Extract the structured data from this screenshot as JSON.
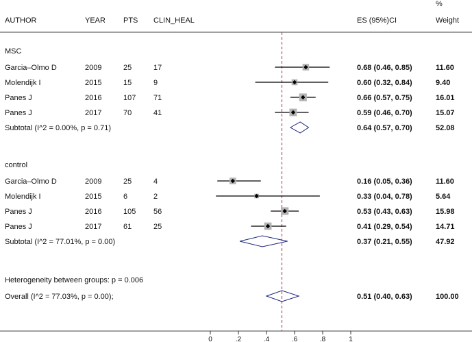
{
  "chart_data": {
    "type": "forest",
    "header": {
      "author": "AUTHOR",
      "year": "YEAR",
      "pts": "PTS",
      "clin_heal": "CLIN_HEAL",
      "es": "ES (95%)CI",
      "weight_top": "%",
      "weight": "Weight"
    },
    "groups": [
      {
        "name": "MSC",
        "studies": [
          {
            "author": "Garcia–Olmo D",
            "year": "2009",
            "pts": "25",
            "clin_heal": "17",
            "es": 0.68,
            "lo": 0.46,
            "hi": 0.85,
            "es_text": "0.68 (0.46, 0.85)",
            "weight": 11.6,
            "weight_text": "11.60"
          },
          {
            "author": "Molendijk I",
            "year": "2015",
            "pts": "15",
            "clin_heal": "9",
            "es": 0.6,
            "lo": 0.32,
            "hi": 0.84,
            "es_text": "0.60 (0.32, 0.84)",
            "weight": 9.4,
            "weight_text": "9.40"
          },
          {
            "author": "Panes J",
            "year": "2016",
            "pts": "107",
            "clin_heal": "71",
            "es": 0.66,
            "lo": 0.57,
            "hi": 0.75,
            "es_text": "0.66 (0.57, 0.75)",
            "weight": 16.01,
            "weight_text": "16.01"
          },
          {
            "author": "Panes J",
            "year": "2017",
            "pts": "70",
            "clin_heal": "41",
            "es": 0.59,
            "lo": 0.46,
            "hi": 0.7,
            "es_text": "0.59 (0.46, 0.70)",
            "weight": 15.07,
            "weight_text": "15.07"
          }
        ],
        "subtotal": {
          "label": "Subtotal  (I^2 = 0.00%, p = 0.71)",
          "es": 0.64,
          "lo": 0.57,
          "hi": 0.7,
          "es_text": "0.64 (0.57, 0.70)",
          "weight_text": "52.08"
        }
      },
      {
        "name": "control",
        "studies": [
          {
            "author": "Garcia–Olmo D",
            "year": "2009",
            "pts": "25",
            "clin_heal": "4",
            "es": 0.16,
            "lo": 0.05,
            "hi": 0.36,
            "es_text": "0.16 (0.05, 0.36)",
            "weight": 11.6,
            "weight_text": "11.60"
          },
          {
            "author": "Molendijk I",
            "year": "2015",
            "pts": "6",
            "clin_heal": "2",
            "es": 0.33,
            "lo": 0.04,
            "hi": 0.78,
            "es_text": "0.33 (0.04, 0.78)",
            "weight": 5.64,
            "weight_text": "5.64"
          },
          {
            "author": "Panes J",
            "year": "2016",
            "pts": "105",
            "clin_heal": "56",
            "es": 0.53,
            "lo": 0.43,
            "hi": 0.63,
            "es_text": "0.53 (0.43, 0.63)",
            "weight": 15.98,
            "weight_text": "15.98"
          },
          {
            "author": "Panes J",
            "year": "2017",
            "pts": "61",
            "clin_heal": "25",
            "es": 0.41,
            "lo": 0.29,
            "hi": 0.54,
            "es_text": "0.41 (0.29, 0.54)",
            "weight": 14.71,
            "weight_text": "14.71"
          }
        ],
        "subtotal": {
          "label": "Subtotal  (I^2 = 77.01%, p = 0.00)",
          "es": 0.37,
          "lo": 0.21,
          "hi": 0.55,
          "es_text": "0.37 (0.21, 0.55)",
          "weight_text": "47.92"
        }
      }
    ],
    "heterogeneity": "Heterogeneity between groups: p = 0.006",
    "overall": {
      "label": "Overall  (I^2 = 77.03%, p = 0.00);",
      "es": 0.51,
      "lo": 0.4,
      "hi": 0.63,
      "es_text": "0.51 (0.40, 0.63)",
      "weight_text": "100.00"
    },
    "x_ticks": [
      "0",
      ".2",
      ".4",
      ".6",
      ".8",
      "1"
    ],
    "x_tick_values": [
      0,
      0.2,
      0.4,
      0.6,
      0.8,
      1
    ],
    "xlim": [
      0,
      1
    ],
    "overall_line_color": "#a0303a",
    "marker_box_color": "#b3b3b3",
    "diamond_color": "#1a237e"
  }
}
